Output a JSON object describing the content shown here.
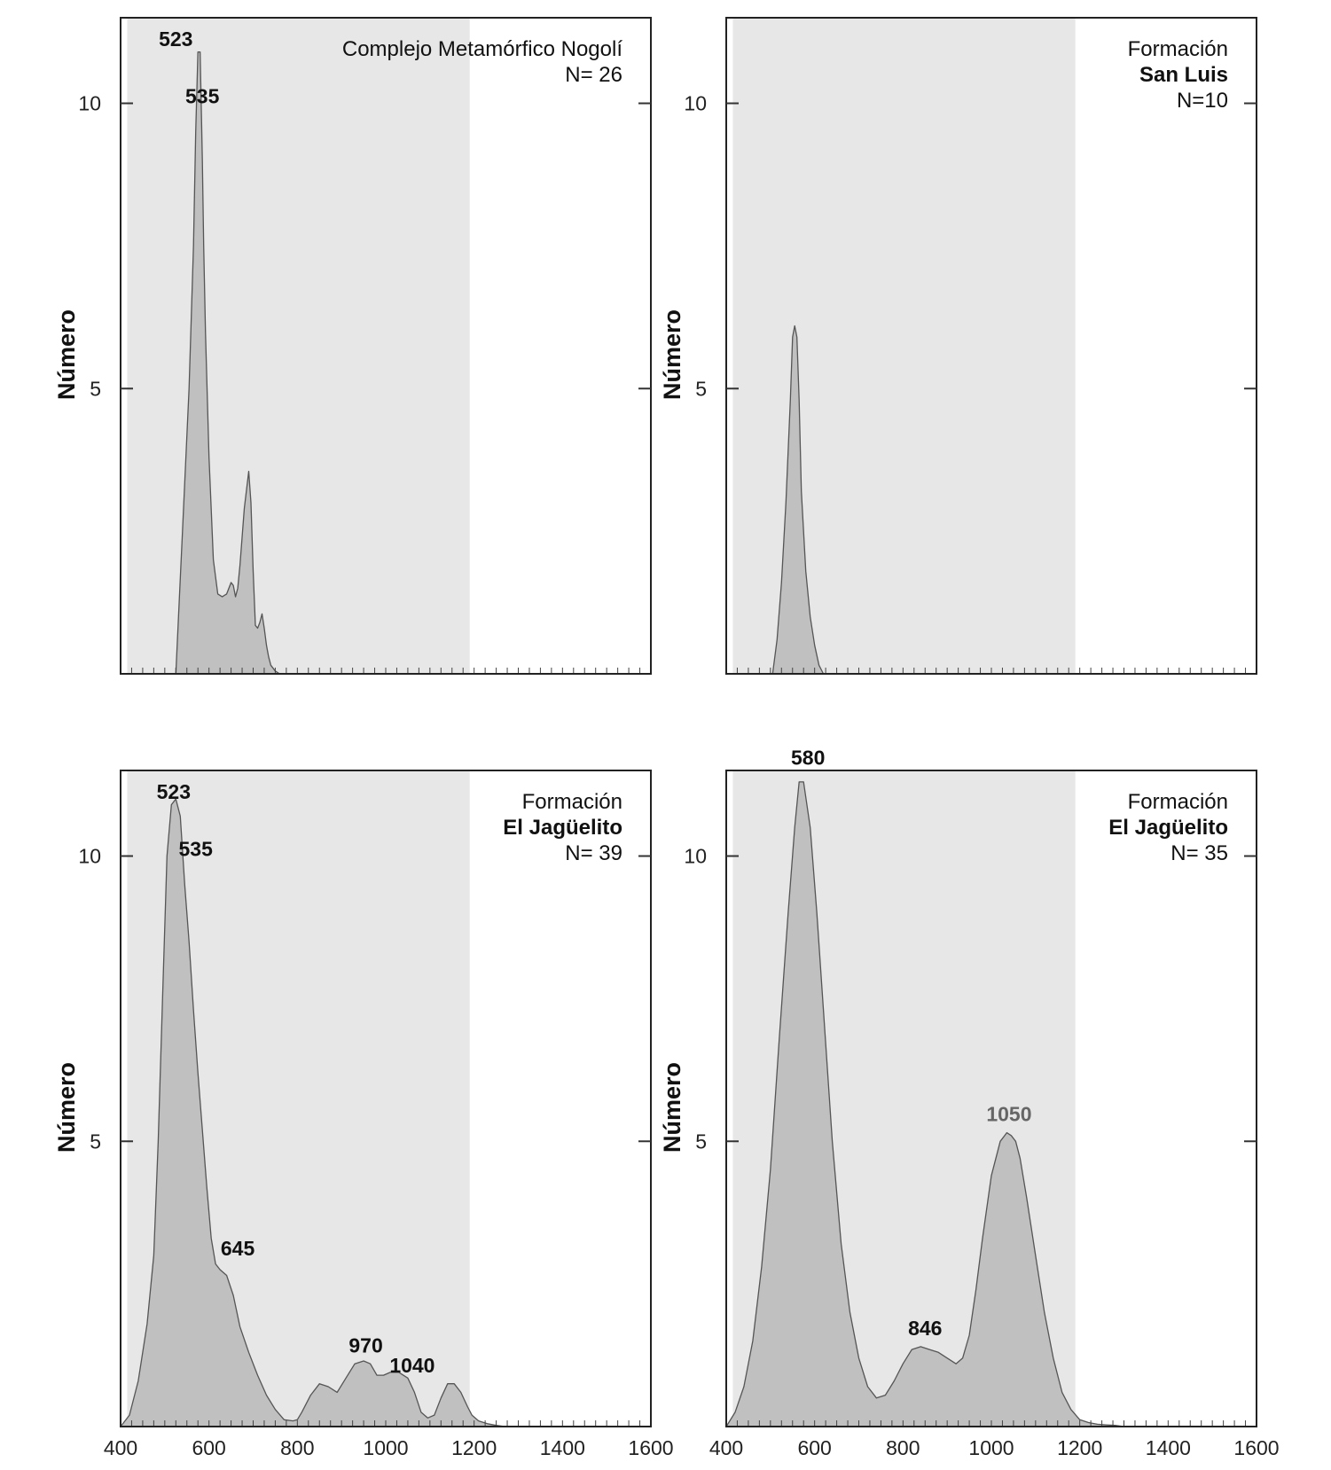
{
  "chart_data": [
    {
      "type": "area",
      "ylabel": "Número",
      "xlim": [
        400,
        1600
      ],
      "ylim": [
        0,
        11.5
      ],
      "yticks": [
        5,
        10
      ],
      "xticks": [],
      "shaded_range": [
        415,
        1190
      ],
      "legend_placement": "top-right",
      "legend_lines": [
        {
          "text": "Complejo Metamórfico Nogolí",
          "bold": false
        },
        {
          "text": "N= 26",
          "bold": false
        }
      ],
      "peak_labels": [
        {
          "text": "523",
          "x": 525,
          "y": 11.0,
          "grey": false
        },
        {
          "text": "535",
          "x": 585,
          "y": 10.0,
          "grey": false
        }
      ],
      "x": [
        525,
        540,
        555,
        565,
        570,
        575,
        580,
        585,
        588,
        592,
        600,
        610,
        620,
        630,
        640,
        650,
        655,
        660,
        665,
        670,
        680,
        690,
        695,
        700,
        705,
        710,
        715,
        720,
        725,
        730,
        735,
        740,
        750,
        760,
        770
      ],
      "y": [
        0,
        2.5,
        5.0,
        7.5,
        9.5,
        10.9,
        10.9,
        9.0,
        7.5,
        6.0,
        3.8,
        2.0,
        1.4,
        1.35,
        1.4,
        1.6,
        1.55,
        1.35,
        1.5,
        1.9,
        2.9,
        3.55,
        3.0,
        1.8,
        0.85,
        0.8,
        0.9,
        1.05,
        0.8,
        0.5,
        0.3,
        0.15,
        0.05,
        0.0,
        0.0
      ]
    },
    {
      "type": "area",
      "ylabel": "Número",
      "xlim": [
        400,
        1600
      ],
      "ylim": [
        0,
        11.5
      ],
      "yticks": [
        5,
        10
      ],
      "xticks": [],
      "shaded_range": [
        415,
        1190
      ],
      "legend_placement": "top-right",
      "legend_lines": [
        {
          "text": "Formación",
          "bold": false
        },
        {
          "text": "San Luis",
          "bold": true
        },
        {
          "text": "N=10",
          "bold": false
        }
      ],
      "peak_labels": [],
      "x": [
        505,
        515,
        525,
        535,
        545,
        550,
        555,
        560,
        565,
        570,
        580,
        590,
        600,
        610,
        620
      ],
      "y": [
        0,
        0.6,
        1.6,
        3.0,
        4.8,
        5.9,
        6.1,
        5.9,
        4.8,
        3.2,
        1.8,
        1.0,
        0.5,
        0.15,
        0
      ]
    },
    {
      "type": "area",
      "ylabel": "Número",
      "xlim": [
        400,
        1600
      ],
      "ylim": [
        0,
        11.5
      ],
      "yticks": [
        5,
        10
      ],
      "xticks": [
        400,
        600,
        800,
        1000,
        1200,
        1400,
        1600
      ],
      "shaded_range": [
        415,
        1190
      ],
      "legend_placement": "top-right",
      "legend_lines": [
        {
          "text": "Formación",
          "bold": false
        },
        {
          "text": "El Jagüelito",
          "bold": true
        },
        {
          "text": "N= 39",
          "bold": false
        }
      ],
      "peak_labels": [
        {
          "text": "523",
          "x": 520,
          "y": 11.0,
          "grey": false
        },
        {
          "text": "535",
          "x": 570,
          "y": 10.0,
          "grey": false
        },
        {
          "text": "645",
          "x": 665,
          "y": 3.0,
          "grey": false
        },
        {
          "text": "970",
          "x": 955,
          "y": 1.3,
          "grey": false
        },
        {
          "text": "1040",
          "x": 1060,
          "y": 0.95,
          "grey": false
        }
      ],
      "x": [
        400,
        420,
        440,
        460,
        475,
        485,
        495,
        505,
        515,
        525,
        535,
        545,
        555,
        565,
        575,
        585,
        595,
        605,
        615,
        625,
        640,
        655,
        670,
        690,
        710,
        730,
        750,
        770,
        790,
        800,
        810,
        830,
        850,
        870,
        890,
        910,
        930,
        950,
        965,
        980,
        995,
        1010,
        1030,
        1050,
        1065,
        1080,
        1095,
        1110,
        1125,
        1140,
        1155,
        1170,
        1185,
        1195,
        1210,
        1230,
        1250,
        1270
      ],
      "y": [
        0,
        0.2,
        0.8,
        1.8,
        3.0,
        5.0,
        7.5,
        10.0,
        10.9,
        11.0,
        10.7,
        9.5,
        8.5,
        7.3,
        6.2,
        5.2,
        4.2,
        3.3,
        2.85,
        2.75,
        2.65,
        2.3,
        1.75,
        1.3,
        0.9,
        0.55,
        0.3,
        0.12,
        0.1,
        0.12,
        0.25,
        0.55,
        0.75,
        0.7,
        0.6,
        0.85,
        1.1,
        1.15,
        1.1,
        0.9,
        0.9,
        0.95,
        0.95,
        0.85,
        0.6,
        0.25,
        0.15,
        0.2,
        0.5,
        0.75,
        0.75,
        0.6,
        0.35,
        0.2,
        0.1,
        0.05,
        0.02,
        0
      ]
    },
    {
      "type": "area",
      "ylabel": "Número",
      "xlim": [
        400,
        1600
      ],
      "ylim": [
        0,
        11.5
      ],
      "yticks": [
        5,
        10
      ],
      "xticks": [
        400,
        600,
        800,
        1000,
        1200,
        1400,
        1600
      ],
      "shaded_range": [
        415,
        1190
      ],
      "legend_placement": "top-right",
      "legend_lines": [
        {
          "text": "Formación",
          "bold": false
        },
        {
          "text": "El Jagüelito",
          "bold": true
        },
        {
          "text": "N= 35",
          "bold": false
        }
      ],
      "peak_labels": [
        {
          "text": "580",
          "x": 585,
          "y": 11.6,
          "grey": false
        },
        {
          "text": "846",
          "x": 850,
          "y": 1.6,
          "grey": false
        },
        {
          "text": "1050",
          "x": 1040,
          "y": 5.35,
          "grey": true
        }
      ],
      "x": [
        400,
        420,
        440,
        460,
        480,
        500,
        520,
        540,
        555,
        565,
        575,
        590,
        605,
        620,
        640,
        660,
        680,
        700,
        720,
        740,
        760,
        780,
        800,
        820,
        840,
        860,
        880,
        900,
        920,
        935,
        950,
        965,
        980,
        1000,
        1020,
        1035,
        1045,
        1055,
        1065,
        1080,
        1100,
        1120,
        1140,
        1160,
        1180,
        1200,
        1220,
        1240,
        1260,
        1280,
        1300
      ],
      "y": [
        0,
        0.25,
        0.7,
        1.5,
        2.8,
        4.5,
        6.8,
        9.0,
        10.5,
        11.3,
        11.3,
        10.5,
        9.0,
        7.3,
        5.0,
        3.2,
        2.0,
        1.2,
        0.7,
        0.5,
        0.55,
        0.8,
        1.1,
        1.35,
        1.4,
        1.35,
        1.3,
        1.2,
        1.1,
        1.2,
        1.6,
        2.4,
        3.3,
        4.4,
        5.0,
        5.15,
        5.1,
        5.0,
        4.7,
        4.0,
        3.0,
        2.0,
        1.2,
        0.6,
        0.3,
        0.12,
        0.07,
        0.04,
        0.03,
        0.02,
        0
      ]
    }
  ]
}
